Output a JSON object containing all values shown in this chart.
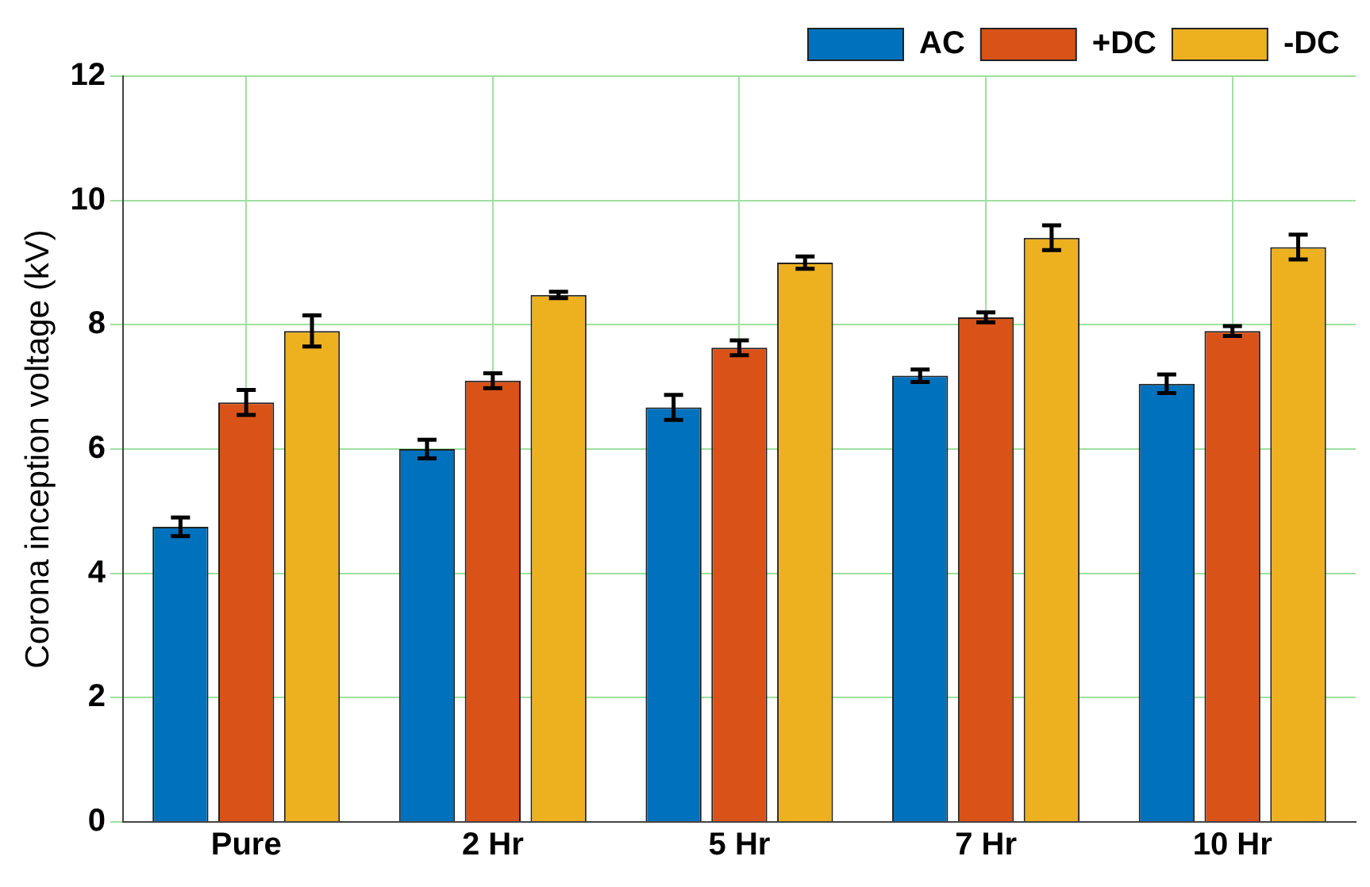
{
  "chart_data": {
    "type": "bar",
    "ylabel": "Corona inception voltage (kV)",
    "categories": [
      "Pure",
      "2 Hr",
      "5 Hr",
      "7 Hr",
      "10 Hr"
    ],
    "series": [
      {
        "name": "AC",
        "color": "#0072bd",
        "values": [
          4.75,
          6.0,
          6.67,
          7.18,
          7.05
        ],
        "errors": [
          0.15,
          0.15,
          0.2,
          0.1,
          0.15
        ]
      },
      {
        "name": "+DC",
        "color": "#d95319",
        "values": [
          6.75,
          7.1,
          7.63,
          8.12,
          7.9
        ],
        "errors": [
          0.2,
          0.12,
          0.12,
          0.08,
          0.08
        ]
      },
      {
        "name": "-DC",
        "color": "#edb120",
        "values": [
          7.9,
          8.48,
          9.0,
          9.4,
          9.25
        ],
        "errors": [
          0.25,
          0.05,
          0.1,
          0.2,
          0.2
        ]
      }
    ],
    "ylim": [
      0,
      12
    ],
    "yticks": [
      0,
      2,
      4,
      6,
      8,
      10,
      12
    ],
    "grid": true,
    "legend": "top right"
  }
}
